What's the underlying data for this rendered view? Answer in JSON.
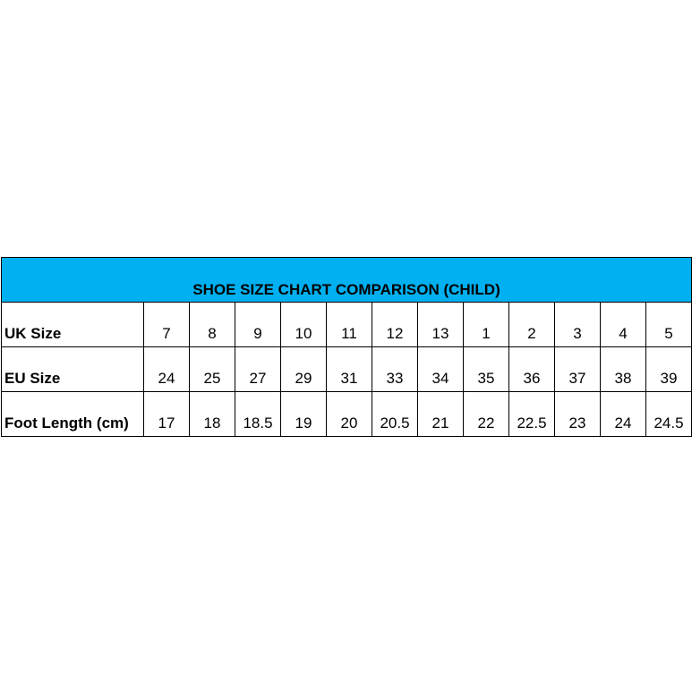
{
  "table": {
    "title": "SHOE SIZE CHART COMPARISON (CHILD)",
    "rows": [
      {
        "label": "UK Size",
        "values": [
          7,
          8,
          9,
          10,
          11,
          12,
          13,
          1,
          2,
          3,
          4,
          5
        ]
      },
      {
        "label": "EU Size",
        "values": [
          24,
          25,
          27,
          29,
          31,
          33,
          34,
          35,
          36,
          37,
          38,
          39
        ]
      },
      {
        "label": "Foot Length (cm)",
        "values": [
          17,
          18,
          18.5,
          19,
          20,
          20.5,
          21,
          22,
          22.5,
          23,
          24,
          24.5
        ]
      }
    ]
  }
}
